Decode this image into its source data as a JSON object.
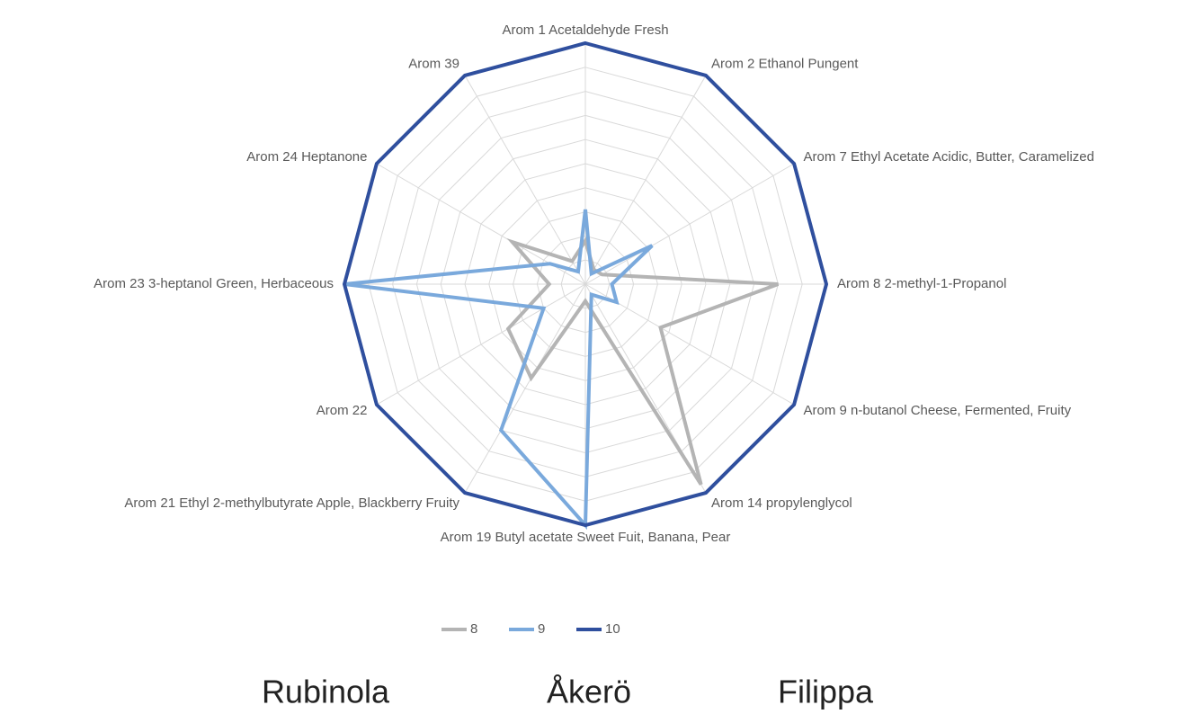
{
  "chart_data": {
    "type": "radar",
    "categories": [
      "Arom 1 Acetaldehyde Fresh",
      "Arom 2 Ethanol Pungent",
      "Arom 7 Ethyl Acetate Acidic, Butter, Caramelized",
      "Arom 8 2-methyl-1-Propanol",
      "Arom 9 n-butanol Cheese, Fermented, Fruity",
      "Arom 14 propylenglycol",
      "Arom 19 Butyl acetate Sweet Fuit, Banana, Pear",
      "Arom 21 Ethyl 2-methylbutyrate Apple, Blackberry Fruity",
      "Arom 22",
      "Arom 23 3-heptanol Green, Herbaceous",
      "Arom 24 Heptanone",
      "Arom 39"
    ],
    "series": [
      {
        "name": "8",
        "color": "#b4b4b4",
        "values": [
          1.8,
          0.7,
          0.8,
          8.0,
          3.6,
          9.6,
          0.7,
          4.5,
          3.7,
          1.5,
          3.5,
          1.1
        ]
      },
      {
        "name": "9",
        "color": "#7aa9dc",
        "values": [
          3.1,
          0.5,
          3.2,
          1.1,
          1.5,
          0.5,
          10,
          7.0,
          2.0,
          10,
          1.7,
          0.6
        ]
      },
      {
        "name": "10",
        "color": "#2f4f9e",
        "values": [
          10,
          10,
          10,
          10,
          10,
          10,
          10,
          10,
          10,
          10,
          10,
          10
        ]
      }
    ],
    "rlim": [
      0,
      10
    ],
    "rticks": [
      1,
      2,
      3,
      4,
      5,
      6,
      7,
      8,
      9,
      10
    ],
    "grid": true,
    "legend": "bottom",
    "footer_labels": [
      "Rubinola",
      "Åkerö",
      "Filippa"
    ]
  }
}
